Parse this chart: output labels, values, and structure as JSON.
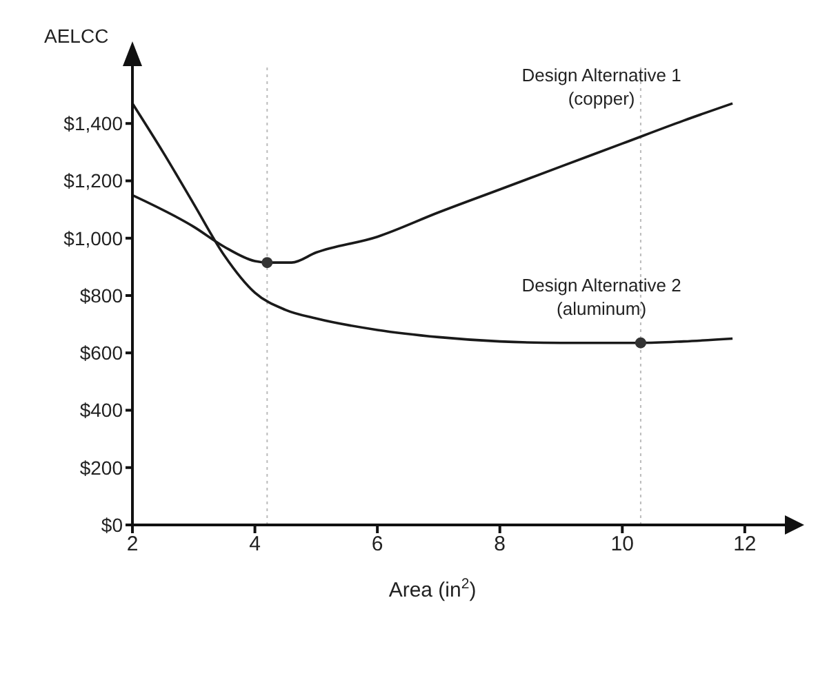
{
  "chart_data": {
    "type": "line",
    "ylabel": "AELCC",
    "xlabel": "Area (in$^{2}$)",
    "series": [
      {
        "name": "Design Alternative 1 (copper)",
        "color": "#1a1a1a",
        "x": [
          2,
          3,
          3.5,
          4,
          4.2,
          4.6,
          5,
          6,
          7,
          8,
          9,
          10,
          11,
          11.8
        ],
        "values": [
          1150,
          1040,
          970,
          920,
          915,
          915,
          950,
          1005,
          1090,
          1170,
          1250,
          1330,
          1410,
          1470
        ]
      },
      {
        "name": "Design Alternative 2 (aluminum)",
        "color": "#1a1a1a",
        "x": [
          2,
          2.5,
          3,
          3.5,
          4,
          4.5,
          5,
          6,
          7,
          8,
          9,
          10.3,
          11,
          11.8
        ],
        "values": [
          1470,
          1300,
          1120,
          940,
          810,
          750,
          720,
          680,
          655,
          640,
          635,
          635,
          640,
          650
        ]
      },
      {
        "type": "scatter",
        "marker": "circle",
        "color": "#333333",
        "x": [
          4.2,
          10.3
        ],
        "values": [
          915,
          635
        ]
      }
    ],
    "xlim": [
      2,
      12.7
    ],
    "xticks": [
      2,
      4,
      6,
      8,
      10,
      12
    ],
    "ylim": [
      0,
      1600
    ],
    "yticks": [
      {
        "value": 0,
        "label": "$0"
      },
      {
        "value": 200,
        "label": "$200"
      },
      {
        "value": 400,
        "label": "$400"
      },
      {
        "value": 600,
        "label": "$600"
      },
      {
        "value": 800,
        "label": "$800"
      },
      {
        "value": 1000,
        "label": "$1,000"
      },
      {
        "value": 1200,
        "label": "$1,200"
      },
      {
        "value": 1400,
        "label": "$1,400"
      }
    ],
    "ref_lines": [
      {
        "axis": "x",
        "value": 4.2,
        "color": "#bbbbbb",
        "line_style": "dotted"
      },
      {
        "axis": "x",
        "value": 10.3,
        "color": "#bbbbbb",
        "line_style": "dotted"
      }
    ],
    "grid": false,
    "legend": false,
    "marker": "none",
    "line_style": "solid"
  }
}
